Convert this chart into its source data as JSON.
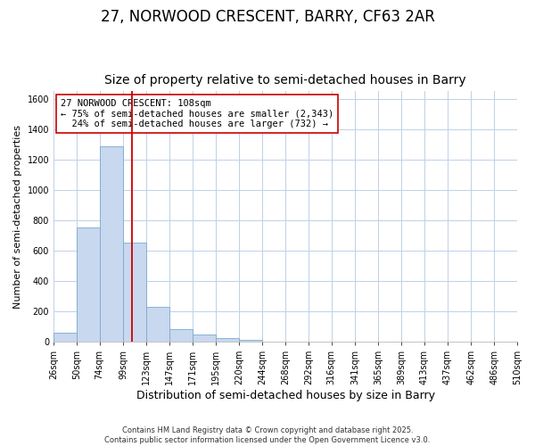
{
  "title": "27, NORWOOD CRESCENT, BARRY, CF63 2AR",
  "subtitle": "Size of property relative to semi-detached houses in Barry",
  "xlabel": "Distribution of semi-detached houses by size in Barry",
  "ylabel": "Number of semi-detached properties",
  "bin_labels": [
    "26sqm",
    "50sqm",
    "74sqm",
    "99sqm",
    "123sqm",
    "147sqm",
    "171sqm",
    "195sqm",
    "220sqm",
    "244sqm",
    "268sqm",
    "292sqm",
    "316sqm",
    "341sqm",
    "365sqm",
    "389sqm",
    "413sqm",
    "437sqm",
    "462sqm",
    "486sqm",
    "510sqm"
  ],
  "bin_edges": [
    26,
    50,
    74,
    99,
    123,
    147,
    171,
    195,
    220,
    244,
    268,
    292,
    316,
    341,
    365,
    389,
    413,
    437,
    462,
    486,
    510
  ],
  "bar_heights": [
    60,
    750,
    1290,
    650,
    230,
    80,
    45,
    25,
    10,
    2,
    0,
    0,
    0,
    0,
    0,
    0,
    0,
    0,
    0,
    0
  ],
  "bar_color": "#c8d8ee",
  "bar_edge_color": "#7aaad0",
  "property_sqm": 108,
  "red_line_color": "#cc0000",
  "annotation_line1": "27 NORWOOD CRESCENT: 108sqm",
  "annotation_line2": "← 75% of semi-detached houses are smaller (2,343)",
  "annotation_line3": "  24% of semi-detached houses are larger (732) →",
  "annotation_box_color": "#ffffff",
  "annotation_box_edge": "#cc0000",
  "ylim": [
    0,
    1650
  ],
  "yticks": [
    0,
    200,
    400,
    600,
    800,
    1000,
    1200,
    1400,
    1600
  ],
  "grid_color": "#c0d0e8",
  "background_color": "#ffffff",
  "footer_text": "Contains HM Land Registry data © Crown copyright and database right 2025.\nContains public sector information licensed under the Open Government Licence v3.0.",
  "title_fontsize": 12,
  "subtitle_fontsize": 10,
  "xlabel_fontsize": 9,
  "ylabel_fontsize": 8,
  "tick_fontsize": 7,
  "annotation_fontsize": 7.5,
  "footer_fontsize": 6
}
